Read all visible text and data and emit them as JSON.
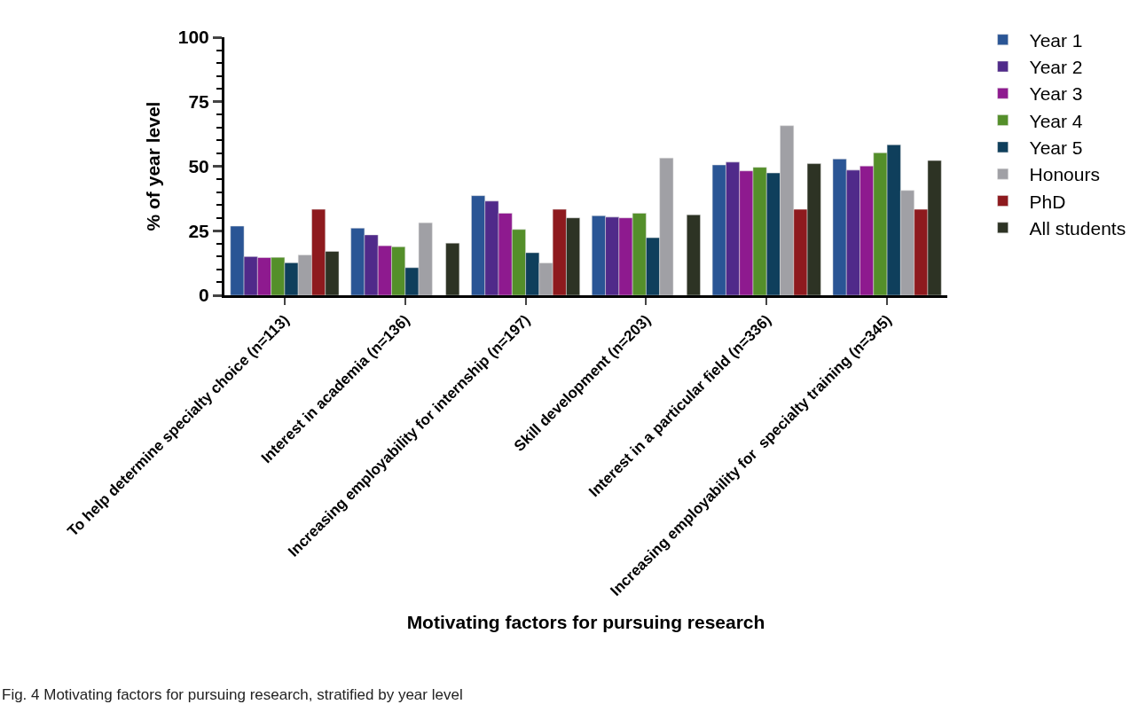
{
  "chart_data": {
    "type": "bar",
    "categories": [
      "To help determine specialty choice (n=113)",
      "Interest in academia (n=136)",
      "Increasing employability for internship (n=197)",
      "Skill development (n=203)",
      "Interest in a particular field (n=336)",
      "Increasing employability for  specialty training (n=345)"
    ],
    "series": [
      {
        "name": "Year 1",
        "color": "#2a5595",
        "values": [
          26.8,
          26.0,
          38.6,
          30.8,
          50.5,
          52.8
        ]
      },
      {
        "name": "Year 2",
        "color": "#502a8a",
        "values": [
          15.0,
          23.4,
          36.5,
          30.3,
          51.6,
          48.5
        ]
      },
      {
        "name": "Year 3",
        "color": "#8e1a8f",
        "values": [
          14.6,
          19.2,
          31.8,
          30.0,
          48.2,
          50.1
        ]
      },
      {
        "name": "Year 4",
        "color": "#548f2a",
        "values": [
          14.7,
          18.8,
          25.5,
          31.8,
          49.6,
          55.2
        ]
      },
      {
        "name": "Year 5",
        "color": "#0f3f5c",
        "values": [
          12.6,
          10.7,
          16.5,
          22.3,
          47.4,
          58.3
        ]
      },
      {
        "name": "Honours",
        "color": "#a0a0a5",
        "values": [
          15.6,
          28.1,
          12.5,
          53.2,
          65.7,
          40.6
        ]
      },
      {
        "name": "PhD",
        "color": "#8e1a1e",
        "values": [
          33.3,
          null,
          33.3,
          null,
          33.3,
          33.3
        ]
      },
      {
        "name": "All students",
        "color": "#2d3324",
        "values": [
          17.0,
          20.2,
          30.0,
          31.2,
          51.0,
          52.2
        ]
      }
    ],
    "ylim": [
      0,
      100
    ],
    "yticks": [
      0,
      25,
      50,
      75,
      100
    ],
    "xlabel": "Motivating factors for pursuing research",
    "ylabel": "% of year level",
    "annotations": [
      "Fig. 4 Motivating factors for pursuing research, stratified by year level"
    ],
    "legend": "top right"
  }
}
